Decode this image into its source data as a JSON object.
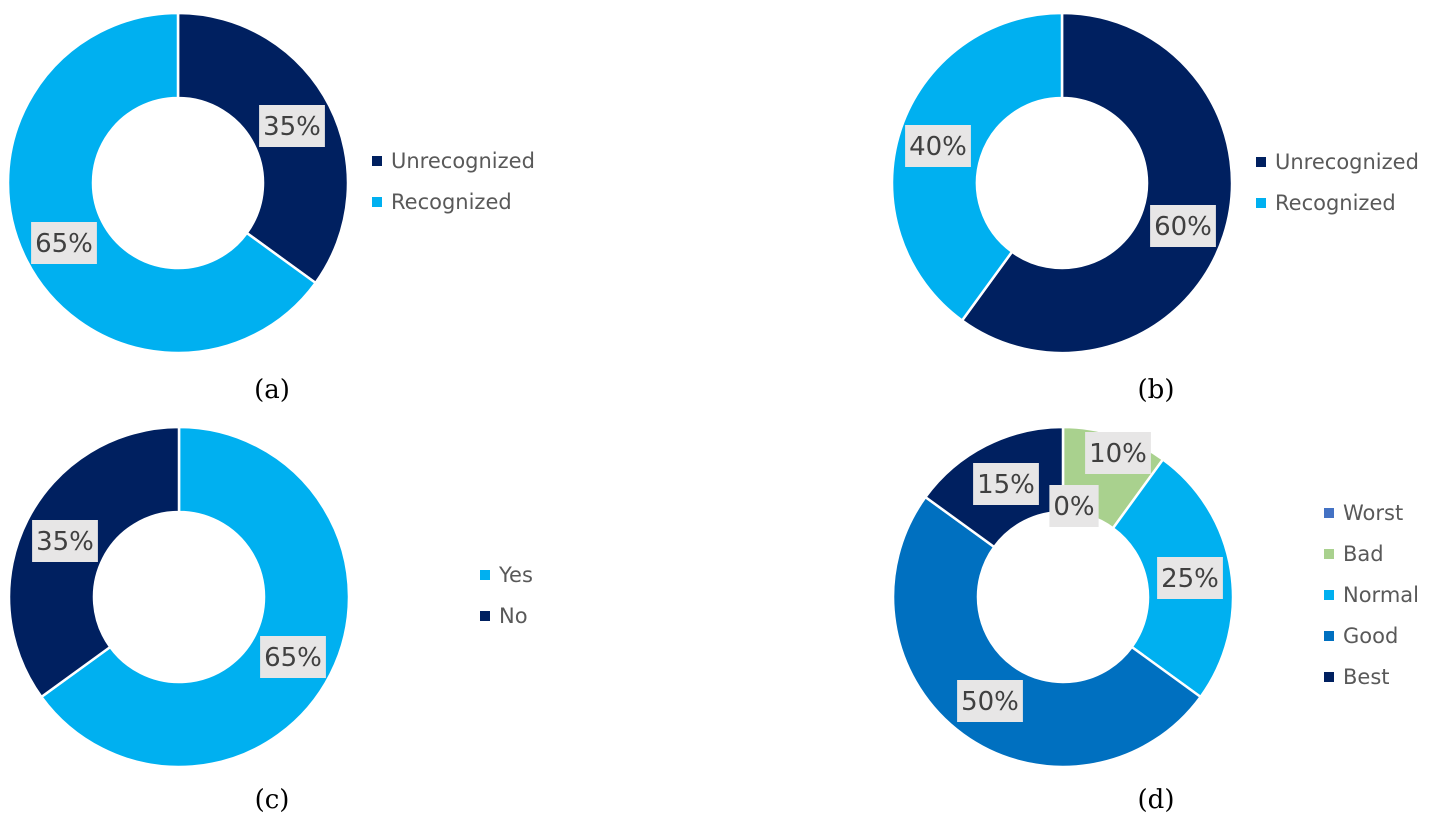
{
  "chart_data": [
    {
      "type": "pie",
      "hole": 0.5,
      "caption": "(a)",
      "categories": [
        "Unrecognized",
        "Recognized"
      ],
      "values": [
        35,
        65
      ],
      "labels": [
        "35%",
        "65%"
      ],
      "colors": [
        "#002060",
        "#00B0F0"
      ],
      "legend": [
        "Unrecognized",
        "Recognized"
      ],
      "legend_colors": [
        "#002060",
        "#00B0F0"
      ],
      "legend_position": "right"
    },
    {
      "type": "pie",
      "hole": 0.5,
      "caption": "(b)",
      "categories": [
        "Unrecognized",
        "Recognized"
      ],
      "values": [
        60,
        40
      ],
      "labels": [
        "60%",
        "40%"
      ],
      "colors": [
        "#002060",
        "#00B0F0"
      ],
      "legend": [
        "Unrecognized",
        "Recognized"
      ],
      "legend_colors": [
        "#002060",
        "#00B0F0"
      ],
      "legend_position": "right"
    },
    {
      "type": "pie",
      "hole": 0.5,
      "caption": "(c)",
      "categories": [
        "Yes",
        "No"
      ],
      "values": [
        65,
        35
      ],
      "labels": [
        "65%",
        "35%"
      ],
      "colors": [
        "#00B0F0",
        "#002060"
      ],
      "legend": [
        "Yes",
        "No"
      ],
      "legend_colors": [
        "#00B0F0",
        "#002060"
      ],
      "legend_position": "right"
    },
    {
      "type": "pie",
      "hole": 0.5,
      "caption": "(d)",
      "categories": [
        "Worst",
        "Bad",
        "Normal",
        "Good",
        "Best"
      ],
      "values": [
        0,
        10,
        25,
        50,
        15
      ],
      "labels": [
        "0%",
        "10%",
        "25%",
        "50%",
        "15%"
      ],
      "colors": [
        "#4472C4",
        "#A9D18E",
        "#00B0F0",
        "#0070C0",
        "#002060"
      ],
      "legend": [
        "Worst",
        "Bad",
        "Normal",
        "Good",
        "Best"
      ],
      "legend_colors": [
        "#4472C4",
        "#A9D18E",
        "#00B0F0",
        "#0070C0",
        "#002060"
      ],
      "legend_position": "right"
    }
  ],
  "style": {
    "label_box_color": "#E7E6E6",
    "separator_color": "#FFFFFF"
  }
}
